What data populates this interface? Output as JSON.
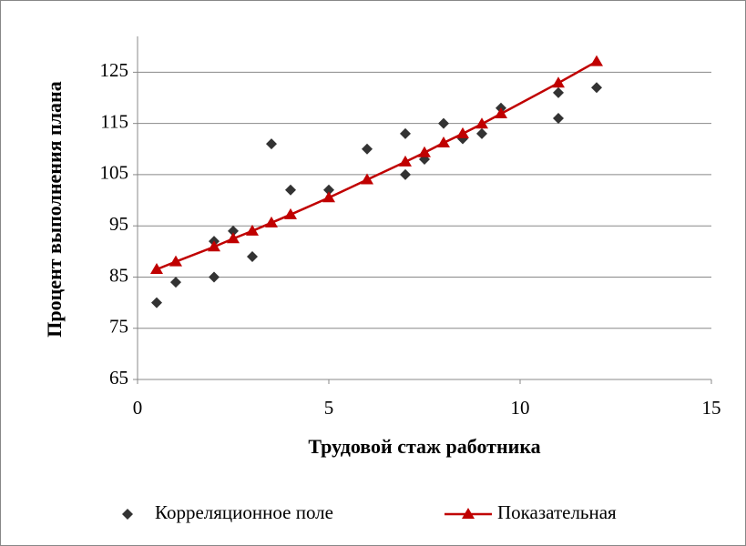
{
  "chart_data": {
    "type": "scatter",
    "xlabel": "Трудовой стаж работника",
    "ylabel": "Процент выполнения плана",
    "xlim": [
      0,
      15
    ],
    "xticks": [
      0,
      5,
      10,
      15
    ],
    "ylim": [
      65,
      132
    ],
    "yticks": [
      65,
      75,
      85,
      95,
      105,
      115,
      125
    ],
    "grid": true,
    "legend": "bottom",
    "series": [
      {
        "name": "Корреляционное поле",
        "color": "#333333",
        "type": "scatter",
        "x": [
          0.5,
          1,
          2,
          2,
          2.5,
          3,
          3.5,
          4,
          5,
          6,
          7,
          7,
          7.5,
          8,
          8.5,
          9,
          9.5,
          11,
          11,
          12
        ],
        "values": [
          80,
          84,
          85,
          92,
          94,
          89,
          111,
          102,
          102,
          110,
          113,
          105,
          108,
          115,
          112,
          113,
          118,
          116,
          121,
          122
        ]
      },
      {
        "name": "Показательная",
        "color": "#c00000",
        "type": "line",
        "x": [
          0.5,
          1,
          2,
          2.5,
          3,
          3.5,
          4,
          5,
          6,
          7,
          7.5,
          8,
          8.5,
          9,
          9.5,
          11,
          12
        ],
        "values": [
          86.5,
          88.0,
          90.9,
          92.5,
          94.0,
          95.6,
          97.2,
          100.5,
          104.0,
          107.5,
          109.3,
          111.2,
          113.0,
          114.9,
          116.9,
          122.9,
          127.1
        ]
      }
    ]
  }
}
